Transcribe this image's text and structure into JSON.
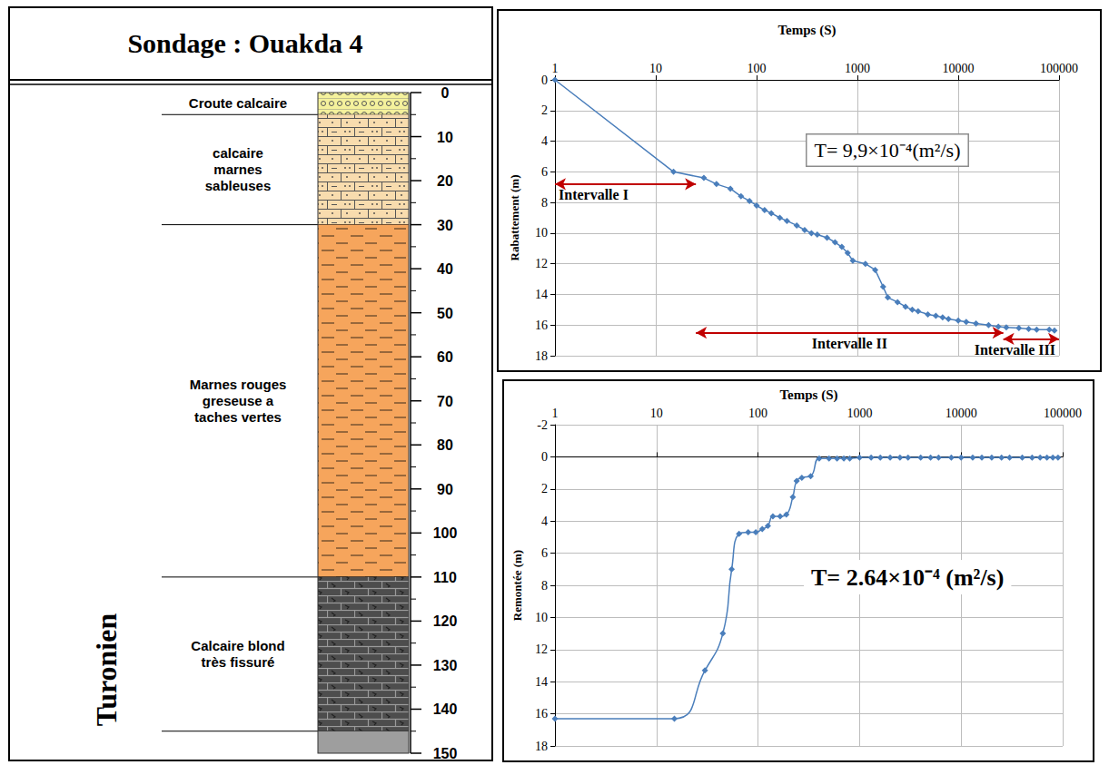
{
  "log": {
    "title": "Sondage : Ouakda 4",
    "stage": "Turonien",
    "depth_ticks": [
      0,
      10,
      20,
      30,
      40,
      50,
      60,
      70,
      80,
      90,
      100,
      110,
      120,
      130,
      140,
      150
    ],
    "layers": [
      {
        "label": "Croute calcaire",
        "top": 0,
        "bottom": 5,
        "color": "#f4f19c"
      },
      {
        "label": "calcaire marnes sableuses",
        "top": 5,
        "bottom": 30,
        "color": "#f8dcae"
      },
      {
        "label": "Marnes rouges greseuse a taches vertes",
        "top": 30,
        "bottom": 110,
        "color": "#f6a55c"
      },
      {
        "label": "Calcaire blond très fissuré",
        "top": 110,
        "bottom": 145,
        "color": "#4d4d4d"
      },
      {
        "top": 145,
        "bottom": 150,
        "color": "#9e9e9e"
      }
    ]
  },
  "chart_data": [
    {
      "type": "line",
      "x_label": "Temps (S)",
      "y_label": "Rabattement (m)",
      "annotation": "T= 9,9×10⁻⁴(m²/s)",
      "x": [
        1,
        15,
        30,
        40,
        55,
        70,
        85,
        100,
        120,
        140,
        170,
        200,
        250,
        300,
        350,
        400,
        500,
        600,
        700,
        800,
        900,
        1200,
        1500,
        1800,
        2000,
        2500,
        3000,
        3500,
        4000,
        5000,
        6000,
        7000,
        8000,
        10000,
        12000,
        15000,
        20000,
        25000,
        30000,
        40000,
        50000,
        60000,
        80000,
        90000
      ],
      "values": [
        0,
        6,
        6.4,
        6.8,
        7.1,
        7.6,
        7.9,
        8.2,
        8.5,
        8.7,
        9.0,
        9.2,
        9.5,
        9.8,
        10.0,
        10.1,
        10.3,
        10.6,
        10.9,
        11.3,
        11.8,
        12.0,
        12.4,
        13.5,
        14.2,
        14.5,
        14.8,
        15.0,
        15.1,
        15.3,
        15.4,
        15.5,
        15.6,
        15.7,
        15.8,
        15.9,
        16.0,
        16.1,
        16.15,
        16.2,
        16.25,
        16.3,
        16.3,
        16.35
      ],
      "color": "#4a7ebb",
      "marker": "diamond",
      "line_style": "solid",
      "log": "x",
      "grid": true,
      "xlim": [
        1,
        100000
      ],
      "xticks": [
        1,
        10,
        100,
        1000,
        10000,
        100000
      ],
      "ylim": [
        0,
        18
      ],
      "yticks": [
        0,
        2,
        4,
        6,
        8,
        10,
        12,
        14,
        16,
        18
      ],
      "intervals": [
        {
          "label": "Intervalle I",
          "from": 1,
          "to": 25,
          "y": 6.8
        },
        {
          "label": "Intervalle II",
          "from": 25,
          "to": 28000,
          "y": 16.5
        },
        {
          "label": "Intervalle III",
          "from": 28000,
          "to": 100000,
          "y": 16.9
        }
      ]
    },
    {
      "type": "line",
      "x_label": "Temps (S)",
      "y_label": "Remontée (m)",
      "annotation": "T= 2.64×10⁻⁴ (m²/s)",
      "x": [
        1,
        15,
        30,
        45,
        55,
        65,
        80,
        95,
        110,
        125,
        140,
        165,
        190,
        220,
        240,
        270,
        330,
        400,
        500,
        600,
        700,
        800,
        1000,
        1300,
        1600,
        2000,
        2500,
        3000,
        4000,
        5000,
        6000,
        8000,
        10000,
        13000,
        16000,
        20000,
        25000,
        30000,
        40000,
        50000,
        60000,
        70000,
        80000,
        90000
      ],
      "values": [
        16.3,
        16.3,
        13.3,
        11.0,
        7.0,
        4.8,
        4.7,
        4.7,
        4.5,
        4.3,
        3.7,
        3.7,
        3.6,
        2.5,
        1.5,
        1.3,
        1.2,
        0.1,
        0.1,
        0.1,
        0.1,
        0.1,
        0.05,
        0.05,
        0.05,
        0.05,
        0.05,
        0.05,
        0.05,
        0.05,
        0.05,
        0.05,
        0.05,
        0.05,
        0.05,
        0.05,
        0.05,
        0.05,
        0.05,
        0.05,
        0.05,
        0.05,
        0.05,
        0.05
      ],
      "color": "#4a7ebb",
      "marker": "diamond",
      "line_style": "smooth",
      "log": "x",
      "grid": true,
      "xlim": [
        1,
        100000
      ],
      "xticks": [
        1,
        10,
        100,
        1000,
        10000,
        100000
      ],
      "ylim": [
        -2,
        18
      ],
      "yticks": [
        -2,
        0,
        2,
        4,
        6,
        8,
        10,
        12,
        14,
        16,
        18
      ]
    }
  ]
}
